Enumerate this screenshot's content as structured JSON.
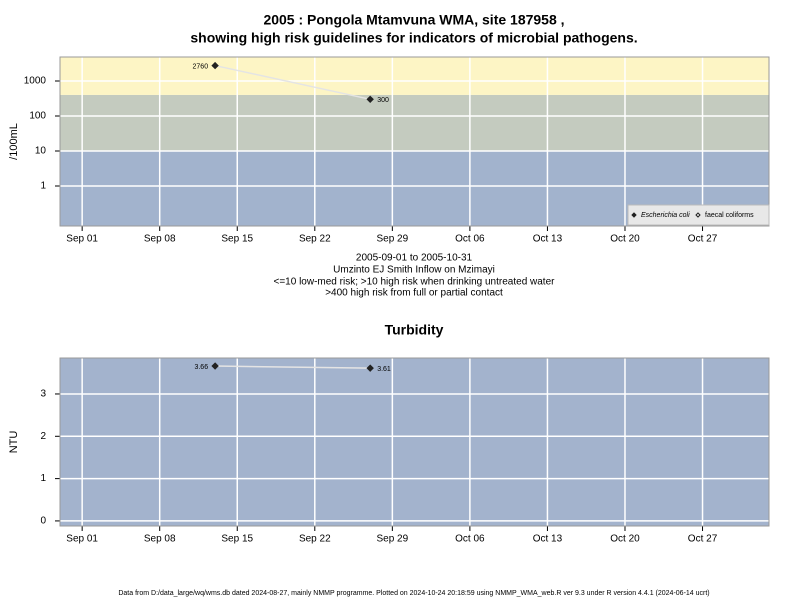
{
  "chart_data": [
    {
      "type": "scatter",
      "title": [
        "2005 : Pongola Mtamvuna WMA, site 187958 ,",
        "showing high risk guidelines for indicators of microbial pathogens."
      ],
      "notes": [
        "2005-09-01 to 2005-10-31",
        "Umzinto EJ Smith Inflow on Mzimayi",
        "<=10 low-med risk; >10 high risk when drinking untreated water",
        ">400 high risk from full or partial contact"
      ],
      "ylabel": "/100mL",
      "log_y": true,
      "xlim": [
        "2005-08-30",
        "2005-11-02"
      ],
      "xticks": [
        {
          "value": "2005-09-01",
          "label": "Sep 01"
        },
        {
          "value": "2005-09-08",
          "label": "Sep 08"
        },
        {
          "value": "2005-09-15",
          "label": "Sep 15"
        },
        {
          "value": "2005-09-22",
          "label": "Sep 22"
        },
        {
          "value": "2005-09-29",
          "label": "Sep 29"
        },
        {
          "value": "2005-10-06",
          "label": "Oct 06"
        },
        {
          "value": "2005-10-13",
          "label": "Oct 13"
        },
        {
          "value": "2005-10-20",
          "label": "Oct 20"
        },
        {
          "value": "2005-10-27",
          "label": "Oct 27"
        }
      ],
      "ylim": [
        0.072,
        4850
      ],
      "yticks": [
        1,
        10,
        100,
        1000
      ],
      "bands": [
        {
          "max": 10,
          "color": "#a2b3cd"
        },
        {
          "min": 10,
          "max": 400,
          "color": "#c4cbbf"
        },
        {
          "min": 400,
          "color": "#fdf5c5"
        }
      ],
      "grid": true,
      "legend": "lower right",
      "series": [
        {
          "name": "Escherichia coli",
          "color": "#222222",
          "marker": "filled",
          "line_color": "#e4e4e4",
          "x": [
            "2005-09-13",
            "2005-09-27"
          ],
          "values": [
            2760,
            300
          ]
        },
        {
          "name": "faecal coliforms",
          "color": "#222222",
          "marker": "hollow",
          "line_color": "#e4e4e4",
          "x": [],
          "values": []
        }
      ]
    },
    {
      "type": "scatter",
      "title": "Turbidity",
      "ylabel": "NTU",
      "xlim": [
        "2005-08-30",
        "2005-11-02"
      ],
      "xticks": [
        {
          "value": "2005-09-01",
          "label": "Sep 01"
        },
        {
          "value": "2005-09-08",
          "label": "Sep 08"
        },
        {
          "value": "2005-09-15",
          "label": "Sep 15"
        },
        {
          "value": "2005-09-22",
          "label": "Sep 22"
        },
        {
          "value": "2005-09-29",
          "label": "Sep 29"
        },
        {
          "value": "2005-10-06",
          "label": "Oct 06"
        },
        {
          "value": "2005-10-13",
          "label": "Oct 13"
        },
        {
          "value": "2005-10-20",
          "label": "Oct 20"
        },
        {
          "value": "2005-10-27",
          "label": "Oct 27"
        }
      ],
      "ylim": [
        -0.12,
        3.85
      ],
      "yticks": [
        0,
        1,
        2,
        3
      ],
      "background": "#a3b3cd",
      "grid": true,
      "series": [
        {
          "name": "Turbidity",
          "color": "#222222",
          "marker": "filled",
          "line_color": "#e4e4e4",
          "x": [
            "2005-09-13",
            "2005-09-27"
          ],
          "values": [
            3.66,
            3.61
          ]
        }
      ]
    }
  ],
  "footer": "Data from D:/data_large/wq/wms.db dated 2024-08-27, mainly NMMP programme. Plotted on 2024-10-24 20:18:59 using NMMP_WMA_web.R ver 9.3 under R version 4.4.1 (2024-06-14 ucrt)"
}
